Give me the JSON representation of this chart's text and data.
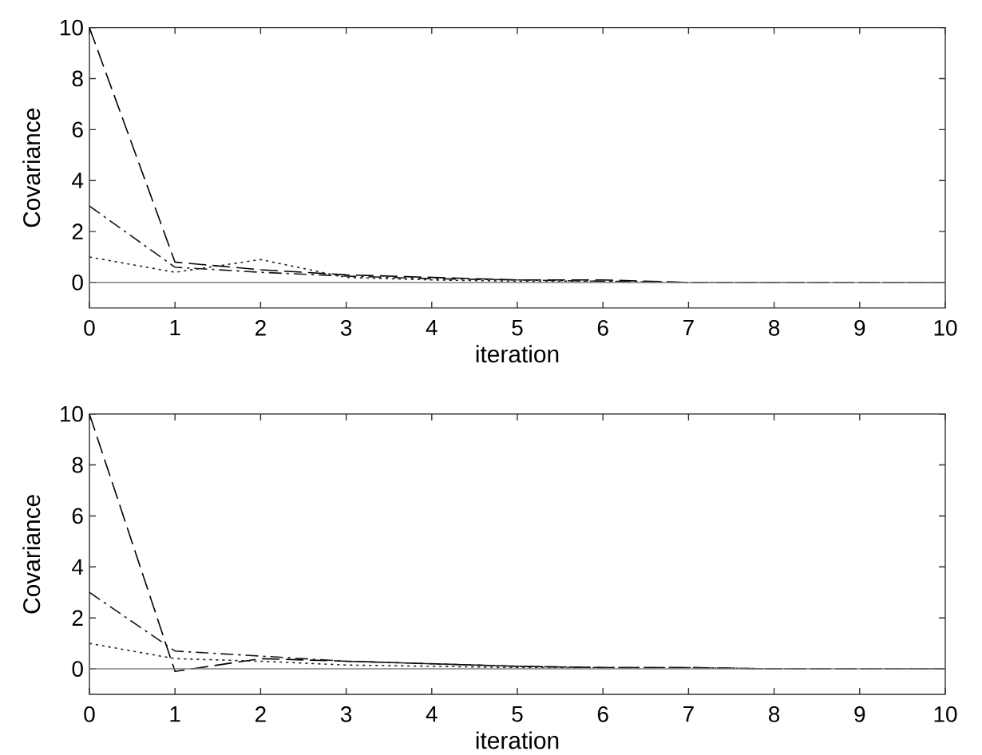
{
  "chart_data": [
    {
      "type": "line",
      "xlabel": "iteration",
      "ylabel": "Covariance",
      "x": [
        0,
        1,
        2,
        3,
        4,
        5,
        6,
        7,
        8,
        9,
        10
      ],
      "series": [
        {
          "color": "#000000",
          "line_style": "dashed",
          "values": [
            10,
            0.8,
            0.5,
            0.3,
            0.2,
            0.1,
            0.1,
            0,
            0,
            0,
            0
          ]
        },
        {
          "color": "#141414",
          "line_style": "dashdot",
          "values": [
            3,
            0.6,
            0.4,
            0.25,
            0.15,
            0.1,
            0.05,
            0,
            0,
            0,
            0
          ]
        },
        {
          "color": "#262626",
          "line_style": "dotted",
          "values": [
            1,
            0.4,
            0.9,
            0.2,
            0.1,
            0.05,
            0.05,
            0,
            0,
            0,
            0
          ]
        },
        {
          "color": "#808080",
          "line_style": "solid",
          "values": [
            0,
            0,
            0,
            0,
            0,
            0,
            0,
            0,
            0,
            0,
            0
          ]
        }
      ],
      "xlim": [
        0,
        10
      ],
      "ylim": [
        -1,
        10
      ],
      "xticks": [
        0,
        1,
        2,
        3,
        4,
        5,
        6,
        7,
        8,
        9,
        10
      ],
      "yticks": [
        0,
        2,
        4,
        6,
        8,
        10
      ]
    },
    {
      "type": "line",
      "xlabel": "iteration",
      "ylabel": "Covariance",
      "x": [
        0,
        1,
        2,
        3,
        4,
        5,
        6,
        7,
        8,
        9,
        10
      ],
      "series": [
        {
          "color": "#000000",
          "line_style": "dashed",
          "values": [
            10,
            -0.1,
            0.4,
            0.3,
            0.2,
            0.1,
            0.05,
            0.05,
            0,
            0,
            0
          ]
        },
        {
          "color": "#141414",
          "line_style": "dashdot",
          "values": [
            3,
            0.7,
            0.5,
            0.3,
            0.2,
            0.1,
            0.05,
            0.05,
            0,
            0,
            0
          ]
        },
        {
          "color": "#262626",
          "line_style": "dotted",
          "values": [
            1,
            0.4,
            0.3,
            0.15,
            0.1,
            0.05,
            0.05,
            0.05,
            0,
            0,
            0
          ]
        },
        {
          "color": "#808080",
          "line_style": "solid",
          "values": [
            0,
            0,
            0,
            0,
            0,
            0,
            0,
            0,
            0,
            0,
            0
          ]
        }
      ],
      "xlim": [
        0,
        10
      ],
      "ylim": [
        -1,
        10
      ],
      "xticks": [
        0,
        1,
        2,
        3,
        4,
        5,
        6,
        7,
        8,
        9,
        10
      ],
      "yticks": [
        0,
        2,
        4,
        6,
        8,
        10
      ]
    }
  ]
}
